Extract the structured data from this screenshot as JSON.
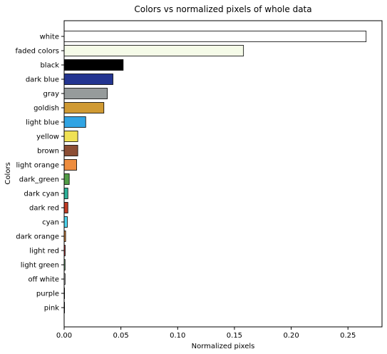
{
  "chart_data": {
    "type": "bar",
    "orientation": "horizontal",
    "title": "Colors vs normalized pixels of whole data",
    "xlabel": "Normalized pixels",
    "ylabel": "Colors",
    "xlim": [
      0,
      0.28
    ],
    "xticks": [
      0.0,
      0.05,
      0.1,
      0.15,
      0.2,
      0.25
    ],
    "xtick_labels": [
      "0.00",
      "0.05",
      "0.10",
      "0.15",
      "0.20",
      "0.25"
    ],
    "grid": false,
    "categories": [
      "white",
      "faded colors",
      "black",
      "dark blue",
      "gray",
      "goldish",
      "light blue",
      "yellow",
      "brown",
      "light orange",
      "dark_green",
      "dark cyan",
      "dark red",
      "cyan",
      "dark orange",
      "light red",
      "light green",
      "off white",
      "purple",
      "pink"
    ],
    "values": [
      0.266,
      0.158,
      0.052,
      0.043,
      0.038,
      0.035,
      0.019,
      0.012,
      0.012,
      0.011,
      0.0045,
      0.0033,
      0.0033,
      0.0028,
      0.0013,
      0.0009,
      0.0008,
      0.0008,
      0.0003,
      0.0002
    ],
    "colors": [
      "#ffffff",
      "#f5fbe8",
      "#000000",
      "#243591",
      "#969b9b",
      "#d09a33",
      "#31a4e3",
      "#f0e154",
      "#8c4e35",
      "#ee8d3e",
      "#529d47",
      "#2db39b",
      "#c23b23",
      "#4fd5ee",
      "#e48b3b",
      "#e23c3c",
      "#83d58f",
      "#f4f4f4",
      "#8a3e9e",
      "#f08ac0"
    ]
  }
}
